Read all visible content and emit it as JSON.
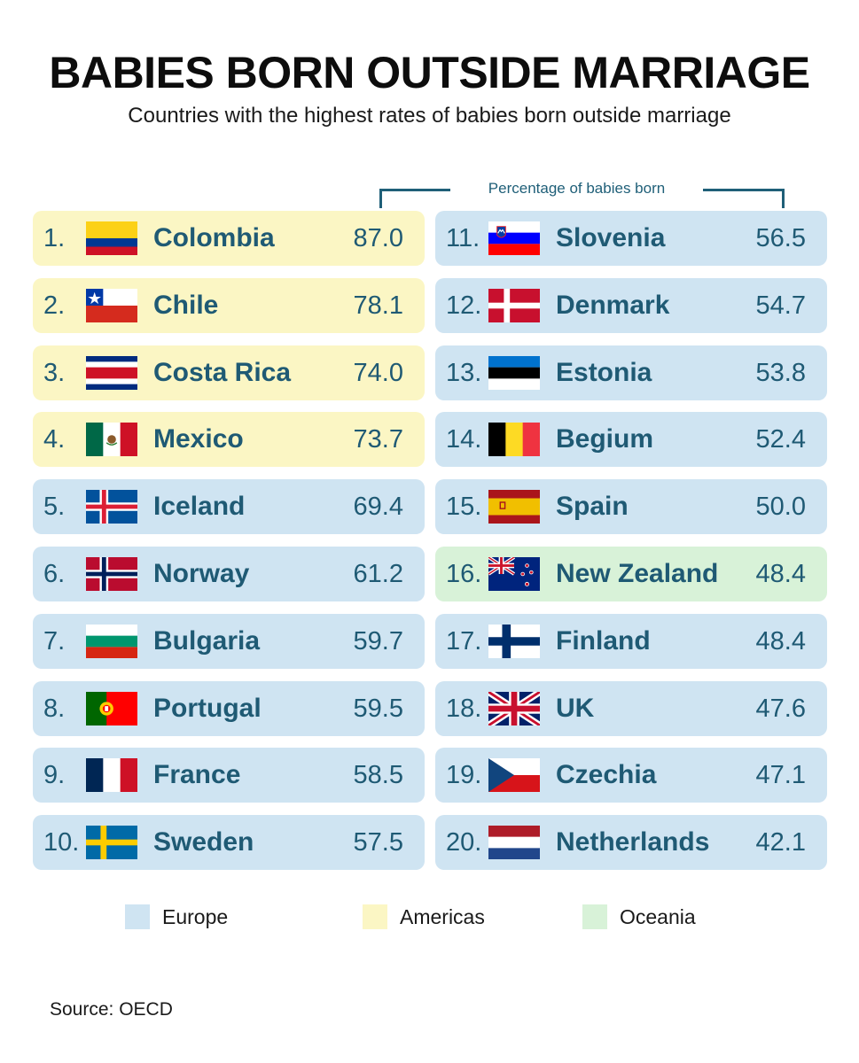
{
  "header": {
    "title": "BABIES BORN OUTSIDE MARRIAGE",
    "subtitle": "Countries with the highest rates of babies born outside marriage",
    "bracket_label": "Percentage of babies born"
  },
  "legend": [
    {
      "label": "Europe",
      "region": "europe",
      "color": "#cfe4f2"
    },
    {
      "label": "Americas",
      "region": "americas",
      "color": "#fbf6c4"
    },
    {
      "label": "Oceania",
      "region": "oceania",
      "color": "#d8f2d8"
    }
  ],
  "source": "Source: OECD",
  "chart_data": {
    "type": "table",
    "title": "BABIES BORN OUTSIDE MARRIAGE",
    "subtitle": "Countries with the highest rates of babies born outside marriage",
    "value_label": "Percentage of babies born",
    "rows": [
      {
        "rank": "1.",
        "country": "Colombia",
        "value": "87.0",
        "region": "americas",
        "flag": "colombia-flag-icon"
      },
      {
        "rank": "2.",
        "country": "Chile",
        "value": "78.1",
        "region": "americas",
        "flag": "chile-flag-icon"
      },
      {
        "rank": "3.",
        "country": "Costa Rica",
        "value": "74.0",
        "region": "americas",
        "flag": "costa-rica-flag-icon"
      },
      {
        "rank": "4.",
        "country": "Mexico",
        "value": "73.7",
        "region": "americas",
        "flag": "mexico-flag-icon"
      },
      {
        "rank": "5.",
        "country": "Iceland",
        "value": "69.4",
        "region": "europe",
        "flag": "iceland-flag-icon"
      },
      {
        "rank": "6.",
        "country": "Norway",
        "value": "61.2",
        "region": "europe",
        "flag": "norway-flag-icon"
      },
      {
        "rank": "7.",
        "country": "Bulgaria",
        "value": "59.7",
        "region": "europe",
        "flag": "bulgaria-flag-icon"
      },
      {
        "rank": "8.",
        "country": "Portugal",
        "value": "59.5",
        "region": "europe",
        "flag": "portugal-flag-icon"
      },
      {
        "rank": "9.",
        "country": "France",
        "value": "58.5",
        "region": "europe",
        "flag": "france-flag-icon"
      },
      {
        "rank": "10.",
        "country": "Sweden",
        "value": "57.5",
        "region": "europe",
        "flag": "sweden-flag-icon"
      },
      {
        "rank": "11.",
        "country": "Slovenia",
        "value": "56.5",
        "region": "europe",
        "flag": "slovenia-flag-icon"
      },
      {
        "rank": "12.",
        "country": "Denmark",
        "value": "54.7",
        "region": "europe",
        "flag": "denmark-flag-icon"
      },
      {
        "rank": "13.",
        "country": "Estonia",
        "value": "53.8",
        "region": "europe",
        "flag": "estonia-flag-icon"
      },
      {
        "rank": "14.",
        "country": "Begium",
        "value": "52.4",
        "region": "europe",
        "flag": "belgium-flag-icon"
      },
      {
        "rank": "15.",
        "country": "Spain",
        "value": "50.0",
        "region": "europe",
        "flag": "spain-flag-icon"
      },
      {
        "rank": "16.",
        "country": "New Zealand",
        "value": "48.4",
        "region": "oceania",
        "flag": "new-zealand-flag-icon"
      },
      {
        "rank": "17.",
        "country": "Finland",
        "value": "48.4",
        "region": "europe",
        "flag": "finland-flag-icon"
      },
      {
        "rank": "18.",
        "country": "UK",
        "value": "47.6",
        "region": "europe",
        "flag": "uk-flag-icon"
      },
      {
        "rank": "19.",
        "country": "Czechia",
        "value": "47.1",
        "region": "europe",
        "flag": "czechia-flag-icon"
      },
      {
        "rank": "20.",
        "country": "Netherlands",
        "value": "42.1",
        "region": "europe",
        "flag": "netherlands-flag-icon"
      }
    ]
  }
}
